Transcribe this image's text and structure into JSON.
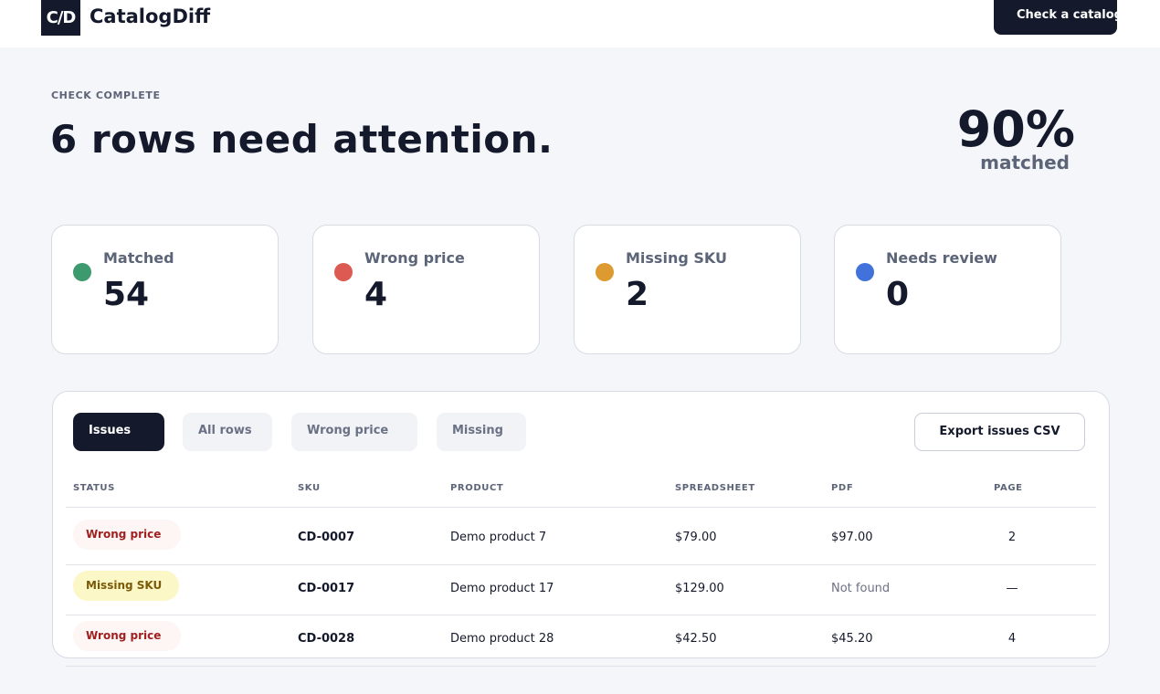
{
  "app": {
    "logo_text": "C/D",
    "name": "CatalogDiff",
    "check_button": "Check a catalog"
  },
  "summary": {
    "eyebrow": "CHECK COMPLETE",
    "headline": "6 rows need attention.",
    "match_percent": "90%",
    "match_label": "matched"
  },
  "stats": [
    {
      "label": "Matched",
      "value": "54",
      "color": "#3c9a6e"
    },
    {
      "label": "Wrong price",
      "value": "4",
      "color": "#dc5a52"
    },
    {
      "label": "Missing SKU",
      "value": "2",
      "color": "#dc9a30"
    },
    {
      "label": "Needs review",
      "value": "0",
      "color": "#4172dc"
    }
  ],
  "tabs": [
    {
      "label": "Issues",
      "active": true
    },
    {
      "label": "All rows",
      "active": false
    },
    {
      "label": "Wrong price",
      "active": false
    },
    {
      "label": "Missing",
      "active": false
    }
  ],
  "export_button": "Export issues CSV",
  "table": {
    "columns": [
      "STATUS",
      "SKU",
      "PRODUCT",
      "SPREADSHEET",
      "PDF",
      "PAGE"
    ],
    "rows": [
      {
        "status": "Wrong price",
        "sku": "CD-0007",
        "product": "Demo product 7",
        "spreadsheet": "$79.00",
        "pdf": "$97.00",
        "page": "2"
      },
      {
        "status": "Missing SKU",
        "sku": "CD-0017",
        "product": "Demo product 17",
        "spreadsheet": "$129.00",
        "pdf": "Not found",
        "page": "—"
      },
      {
        "status": "Wrong price",
        "sku": "CD-0028",
        "product": "Demo product 28",
        "spreadsheet": "$42.50",
        "pdf": "$45.20",
        "page": "4"
      }
    ]
  }
}
